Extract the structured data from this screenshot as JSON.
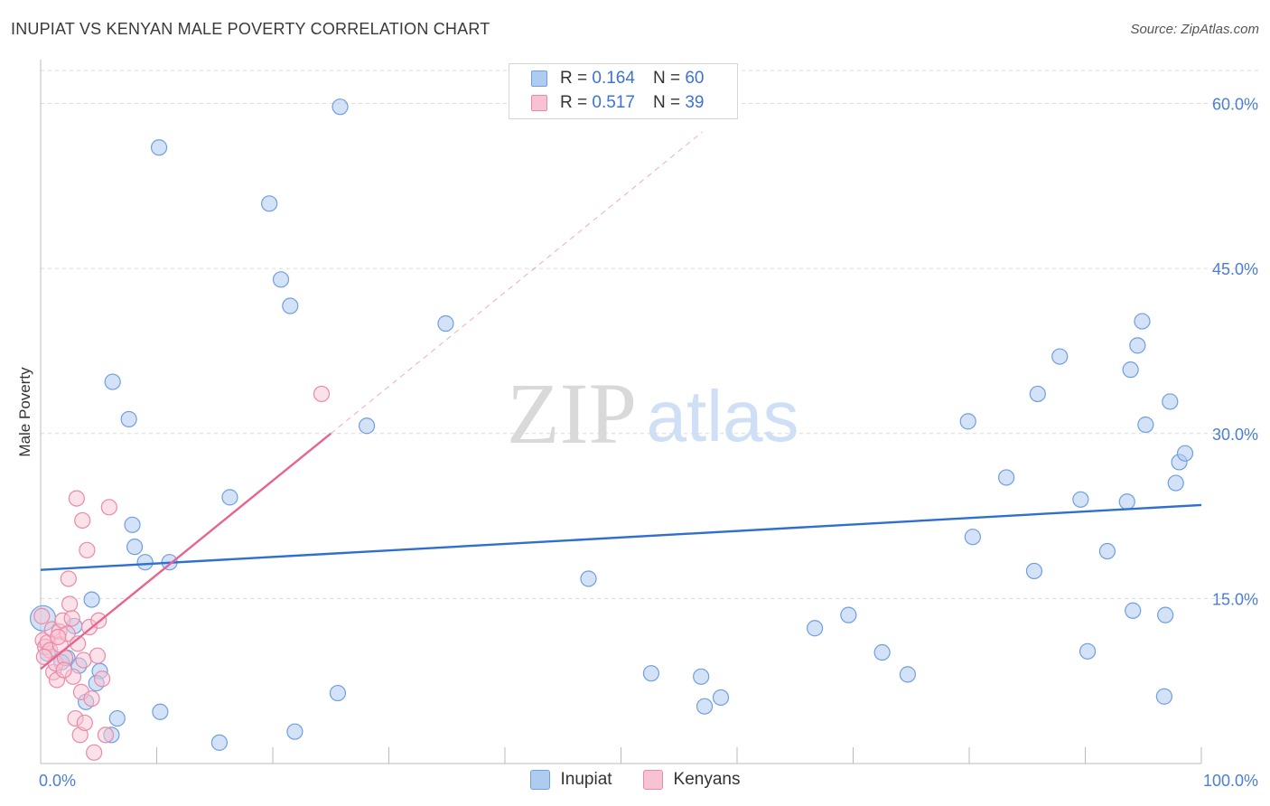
{
  "title": "INUPIAT VS KENYAN MALE POVERTY CORRELATION CHART",
  "source": "Source: ZipAtlas.com",
  "watermark": {
    "zip": "ZIP",
    "atlas": "atlas"
  },
  "legend": {
    "rows": [
      {
        "r_label": "R =",
        "r_value": "0.164",
        "n_label": "N =",
        "n_value": "60"
      },
      {
        "r_label": "R =",
        "r_value": "0.517",
        "n_label": "N =",
        "n_value": "39"
      }
    ]
  },
  "colors": {
    "inupiat_fill": "#aecbf0",
    "inupiat_stroke": "#6f9fe0",
    "inupiat_line": "#2e6fd0",
    "kenyan_fill": "#f7c3d2",
    "kenyan_stroke": "#ea8aa8",
    "kenyan_line": "#e8648e",
    "grid": "#dcdcdc",
    "axis_text": "#4a7fd4"
  },
  "chart_data": {
    "type": "scatter",
    "title": "INUPIAT VS KENYAN MALE POVERTY CORRELATION CHART",
    "xlabel": "",
    "ylabel": "Male Poverty",
    "xlim": [
      0,
      100
    ],
    "ylim": [
      0,
      63
    ],
    "x_tick_labels": [
      "0.0%",
      "100.0%"
    ],
    "y_ticks": [
      15,
      30,
      45,
      60
    ],
    "y_tick_labels": [
      "15.0%",
      "30.0%",
      "45.0%",
      "60.0%"
    ],
    "grid": true,
    "legend_position": "top-center",
    "series": [
      {
        "name": "Inupiat",
        "r": 0.164,
        "n": 60,
        "trend": {
          "x": [
            0,
            100
          ],
          "y": [
            17.6,
            23.5
          ]
        },
        "points": [
          [
            25.8,
            59.7
          ],
          [
            10.2,
            56.0
          ],
          [
            19.7,
            50.9
          ],
          [
            20.7,
            44.0
          ],
          [
            21.5,
            41.6
          ],
          [
            34.9,
            40.0
          ],
          [
            6.2,
            34.7
          ],
          [
            7.6,
            31.3
          ],
          [
            28.1,
            30.7
          ],
          [
            16.3,
            24.2
          ],
          [
            7.9,
            21.7
          ],
          [
            8.1,
            19.7
          ],
          [
            11.1,
            18.3
          ],
          [
            9.0,
            18.3
          ],
          [
            4.4,
            14.9
          ],
          [
            2.9,
            12.5
          ],
          [
            0.6,
            10.0
          ],
          [
            2.3,
            9.6
          ],
          [
            1.8,
            9.2
          ],
          [
            3.3,
            8.9
          ],
          [
            5.1,
            8.4
          ],
          [
            4.8,
            7.3
          ],
          [
            3.9,
            5.6
          ],
          [
            25.6,
            6.4
          ],
          [
            6.6,
            4.1
          ],
          [
            10.3,
            4.7
          ],
          [
            6.1,
            2.6
          ],
          [
            21.9,
            2.9
          ],
          [
            15.4,
            1.9
          ],
          [
            47.2,
            16.8
          ],
          [
            52.6,
            8.2
          ],
          [
            56.9,
            7.9
          ],
          [
            57.2,
            5.2
          ],
          [
            58.6,
            6.0
          ],
          [
            66.7,
            12.3
          ],
          [
            69.6,
            13.5
          ],
          [
            72.5,
            10.1
          ],
          [
            74.7,
            8.1
          ],
          [
            79.9,
            31.1
          ],
          [
            80.3,
            20.6
          ],
          [
            83.2,
            26.0
          ],
          [
            85.6,
            17.5
          ],
          [
            85.9,
            33.6
          ],
          [
            87.8,
            37.0
          ],
          [
            89.6,
            24.0
          ],
          [
            90.2,
            10.2
          ],
          [
            91.9,
            19.3
          ],
          [
            93.6,
            23.8
          ],
          [
            93.9,
            35.8
          ],
          [
            94.1,
            13.9
          ],
          [
            94.5,
            38.0
          ],
          [
            94.9,
            40.2
          ],
          [
            95.2,
            30.8
          ],
          [
            96.9,
            13.5
          ],
          [
            97.3,
            32.9
          ],
          [
            97.8,
            25.5
          ],
          [
            98.1,
            27.4
          ],
          [
            98.6,
            28.2
          ],
          [
            96.8,
            6.1
          ],
          [
            0.2,
            13.2
          ]
        ]
      },
      {
        "name": "Kenyans",
        "r": 0.517,
        "n": 39,
        "trend": {
          "x": [
            0,
            25
          ],
          "y": [
            8.6,
            30.0
          ]
        },
        "trend_dashed": {
          "x": [
            25,
            57
          ],
          "y": [
            30.0,
            57.4
          ]
        },
        "points": [
          [
            0.1,
            13.4
          ],
          [
            0.2,
            11.2
          ],
          [
            0.4,
            10.6
          ],
          [
            0.6,
            11.0
          ],
          [
            0.8,
            10.3
          ],
          [
            1.0,
            12.2
          ],
          [
            1.1,
            8.3
          ],
          [
            1.3,
            9.1
          ],
          [
            1.4,
            7.6
          ],
          [
            1.6,
            12.0
          ],
          [
            1.7,
            10.8
          ],
          [
            1.9,
            13.0
          ],
          [
            2.1,
            9.6
          ],
          [
            2.3,
            11.8
          ],
          [
            2.4,
            16.8
          ],
          [
            2.5,
            14.5
          ],
          [
            2.7,
            13.2
          ],
          [
            2.8,
            7.9
          ],
          [
            3.0,
            4.1
          ],
          [
            3.1,
            24.1
          ],
          [
            3.2,
            10.9
          ],
          [
            3.4,
            2.6
          ],
          [
            3.5,
            6.5
          ],
          [
            3.6,
            22.1
          ],
          [
            3.7,
            9.4
          ],
          [
            3.8,
            3.7
          ],
          [
            4.0,
            19.4
          ],
          [
            4.2,
            12.4
          ],
          [
            4.4,
            5.9
          ],
          [
            4.6,
            1.0
          ],
          [
            5.0,
            13.0
          ],
          [
            5.3,
            7.7
          ],
          [
            5.6,
            2.6
          ],
          [
            5.9,
            23.3
          ],
          [
            24.2,
            33.6
          ],
          [
            0.3,
            9.7
          ],
          [
            2.0,
            8.5
          ],
          [
            4.9,
            9.8
          ],
          [
            1.5,
            11.5
          ]
        ]
      }
    ]
  },
  "bottom_legend": {
    "items": [
      "Inupiat",
      "Kenyans"
    ]
  }
}
